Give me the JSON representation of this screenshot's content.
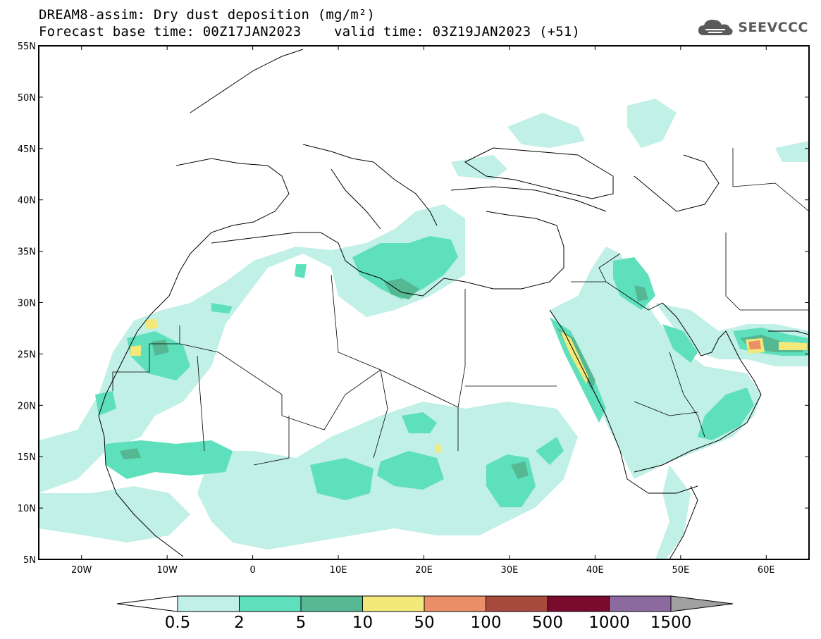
{
  "title": {
    "line1": "DREAM8-assim: Dry dust deposition (mg/m²)",
    "line2": "Forecast base time: 00Z17JAN2023    valid time: 03Z19JAN2023 (+51)"
  },
  "logo": {
    "text": "SEEVCCC",
    "icon": "cloud-icon"
  },
  "map": {
    "lon_range": [
      -25,
      65
    ],
    "lat_range": [
      5,
      55
    ],
    "lon_ticks": [
      {
        "value": -20,
        "label": "20W"
      },
      {
        "value": -10,
        "label": "10W"
      },
      {
        "value": 0,
        "label": "0"
      },
      {
        "value": 10,
        "label": "10E"
      },
      {
        "value": 20,
        "label": "20E"
      },
      {
        "value": 30,
        "label": "30E"
      },
      {
        "value": 40,
        "label": "40E"
      },
      {
        "value": 50,
        "label": "50E"
      },
      {
        "value": 60,
        "label": "60E"
      }
    ],
    "lat_ticks": [
      {
        "value": 55,
        "label": "55N"
      },
      {
        "value": 50,
        "label": "50N"
      },
      {
        "value": 45,
        "label": "45N"
      },
      {
        "value": 40,
        "label": "40N"
      },
      {
        "value": 35,
        "label": "35N"
      },
      {
        "value": 30,
        "label": "30N"
      },
      {
        "value": 25,
        "label": "25N"
      },
      {
        "value": 20,
        "label": "20N"
      },
      {
        "value": 15,
        "label": "15N"
      },
      {
        "value": 10,
        "label": "10N"
      },
      {
        "value": 5,
        "label": "5N"
      }
    ]
  },
  "colorbar": {
    "labels": [
      "0.5",
      "2",
      "5",
      "10",
      "50",
      "100",
      "500",
      "1000",
      "1500"
    ],
    "colors": [
      "#c0f0e6",
      "#5fe0bc",
      "#55b893",
      "#f3e87a",
      "#ea8f68",
      "#a84b3e",
      "#7a0a2e",
      "#8c6aa0"
    ],
    "under_color": "#ffffff",
    "over_color": "#a0a0a0"
  }
}
